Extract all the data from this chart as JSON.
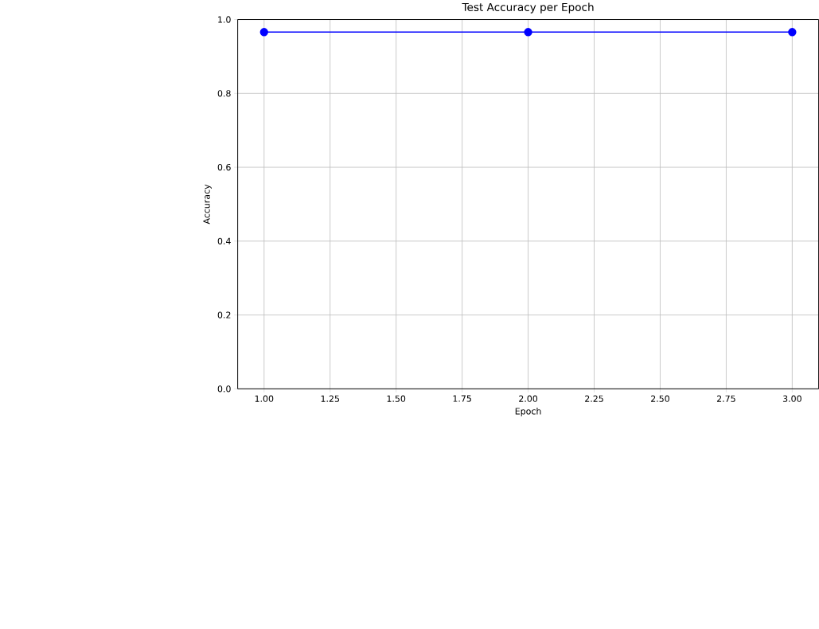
{
  "chart_data": {
    "type": "line",
    "title": "Test Accuracy per Epoch",
    "xlabel": "Epoch",
    "ylabel": "Accuracy",
    "x": [
      1,
      2,
      3
    ],
    "series": [
      {
        "color": "#0000ff",
        "values": [
          0.966,
          0.966,
          0.966
        ]
      }
    ],
    "xlim": [
      0.9,
      3.1
    ],
    "ylim": [
      0,
      1
    ],
    "xticks": [
      {
        "value": 1,
        "label": "1.00"
      },
      {
        "value": 1.25,
        "label": "1.25"
      },
      {
        "value": 1.5,
        "label": "1.50"
      },
      {
        "value": 1.75,
        "label": "1.75"
      },
      {
        "value": 2,
        "label": "2.00"
      },
      {
        "value": 2.25,
        "label": "2.25"
      },
      {
        "value": 2.5,
        "label": "2.50"
      },
      {
        "value": 2.75,
        "label": "2.75"
      },
      {
        "value": 3,
        "label": "3.00"
      }
    ],
    "yticks": [
      {
        "value": 0,
        "label": "0.0"
      },
      {
        "value": 0.2,
        "label": "0.2"
      },
      {
        "value": 0.4,
        "label": "0.4"
      },
      {
        "value": 0.6,
        "label": "0.6"
      },
      {
        "value": 0.8,
        "label": "0.8"
      },
      {
        "value": 1,
        "label": "1.0"
      }
    ],
    "grid": true,
    "marker": "circle",
    "line_style": "solid"
  }
}
